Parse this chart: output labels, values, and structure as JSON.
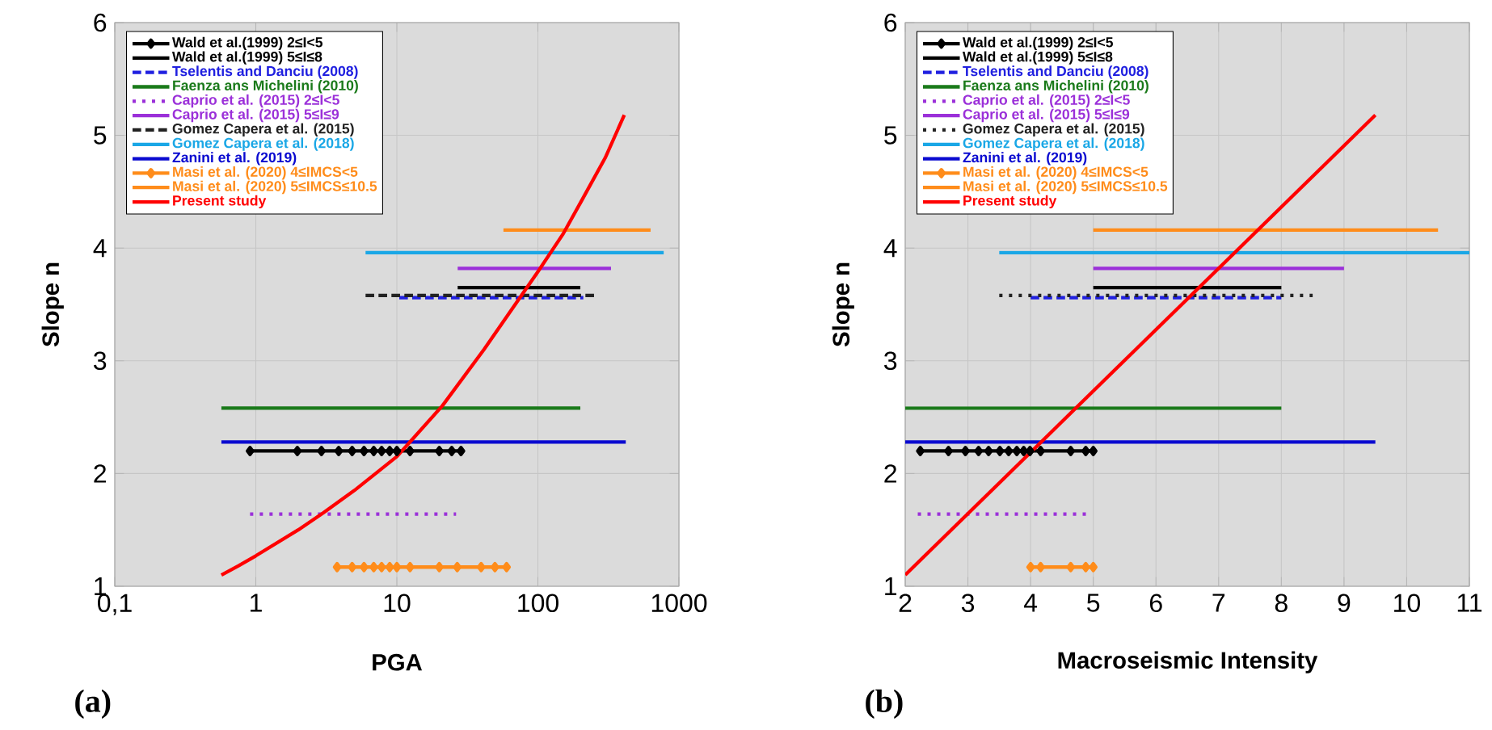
{
  "chart_data": [
    {
      "type": "line",
      "xlabel": "PGA",
      "ylabel": "Slope n",
      "log": "x",
      "grid": true,
      "legend": "top left",
      "xlim": [
        0.1,
        1000
      ],
      "ylim": [
        1,
        6
      ],
      "xticks": [
        {
          "value": 0.1,
          "label": "0,1"
        },
        1,
        10,
        100,
        1000
      ],
      "yticks": [
        1,
        2,
        3,
        4,
        5,
        6
      ],
      "annotations": [
        "(a)"
      ],
      "series": [
        {
          "name": "Wald et al.(1999) 2≤I<5",
          "color": "#000000",
          "line_style": "solid",
          "marker": "diamond",
          "x": [
            0.91,
            1.97,
            2.92,
            3.87,
            4.82,
            5.85,
            6.86,
            7.8,
            8.9,
            10,
            12.4,
            20,
            24.5,
            28.5
          ],
          "values": [
            2.2,
            2.2,
            2.2,
            2.2,
            2.2,
            2.2,
            2.2,
            2.2,
            2.2,
            2.2,
            2.2,
            2.2,
            2.2,
            2.2
          ]
        },
        {
          "name": "Wald et al.(1999) 5≤I≤8",
          "color": "#000000",
          "line_style": "solid",
          "x": [
            27,
            200
          ],
          "values": [
            3.65,
            3.65
          ]
        },
        {
          "name": "Tselentis and Danciu (2008)",
          "color": "#2020e0",
          "line_style": "dashed",
          "x": [
            10.4,
            210
          ],
          "values": [
            3.56,
            3.56
          ]
        },
        {
          "name": "Faenza ans Michelini (2010)",
          "color": "#1a7a1a",
          "line_style": "solid",
          "x": [
            0.57,
            200
          ],
          "values": [
            2.58,
            2.58
          ]
        },
        {
          "name": "Caprio et al. (2015) 2≤I<5",
          "color": "#9b30d9",
          "line_style": "dotted",
          "x": [
            0.91,
            26.3
          ],
          "values": [
            1.64,
            1.64
          ]
        },
        {
          "name": "Caprio et al. (2015) 5≤I≤9",
          "color": "#9b30d9",
          "line_style": "solid",
          "x": [
            27,
            330
          ],
          "values": [
            3.82,
            3.82
          ]
        },
        {
          "name": "Gomez Capera et al. (2015)",
          "color": "#222222",
          "line_style": "dashed",
          "x": [
            6,
            263
          ],
          "values": [
            3.58,
            3.58
          ]
        },
        {
          "name": "Gomez Capera et al. (2018)",
          "color": "#1aa7e6",
          "line_style": "solid",
          "x": [
            6,
            780
          ],
          "values": [
            3.96,
            3.96
          ]
        },
        {
          "name": "Zanini et al. (2019)",
          "color": "#0a0ad0",
          "line_style": "solid",
          "x": [
            0.57,
            420
          ],
          "values": [
            2.28,
            2.28
          ]
        },
        {
          "name": "Masi et al. (2020)   4≤IMCS<5",
          "color": "#ff8c1a",
          "line_style": "solid",
          "marker": "diamond",
          "x": [
            3.77,
            4.82,
            5.85,
            6.86,
            7.8,
            8.9,
            10,
            12.4,
            20,
            26.8,
            39.6,
            49.6,
            60
          ],
          "values": [
            1.17,
            1.17,
            1.17,
            1.17,
            1.17,
            1.17,
            1.17,
            1.17,
            1.17,
            1.17,
            1.17,
            1.17,
            1.17
          ]
        },
        {
          "name": "Masi et al. (2020) 5≤IMCS≤10.5",
          "color": "#ff8c1a",
          "line_style": "solid",
          "x": [
            57,
            630
          ],
          "values": [
            4.16,
            4.16
          ]
        },
        {
          "name": "Present study",
          "color": "#ff0000",
          "line_style": "solid",
          "x": [
            0.57,
            0.75,
            1,
            2,
            3,
            5,
            10,
            21,
            41.5,
            100,
            150,
            200,
            300,
            410
          ],
          "values": [
            1.1,
            1.18,
            1.27,
            1.5,
            1.65,
            1.85,
            2.15,
            2.6,
            3.1,
            3.79,
            4.12,
            4.4,
            4.8,
            5.18
          ]
        }
      ]
    },
    {
      "type": "line",
      "xlabel": "Macroseismic Intensity",
      "ylabel": "Slope n",
      "grid": true,
      "legend": "top left",
      "xlim": [
        2,
        11
      ],
      "ylim": [
        1,
        6
      ],
      "xticks": [
        2,
        3,
        4,
        5,
        6,
        7,
        8,
        9,
        10,
        11
      ],
      "yticks": [
        1,
        2,
        3,
        4,
        5,
        6
      ],
      "annotations": [
        "(b)"
      ],
      "series": [
        {
          "name": "Wald et al.(1999) 2≤I<5",
          "color": "#000000",
          "line_style": "solid",
          "marker": "diamond",
          "x": [
            2.24,
            2.69,
            2.96,
            3.17,
            3.33,
            3.51,
            3.65,
            3.78,
            3.89,
            3.99,
            4.16,
            4.64,
            4.88,
            5.0
          ],
          "values": [
            2.2,
            2.2,
            2.2,
            2.2,
            2.2,
            2.2,
            2.2,
            2.2,
            2.2,
            2.2,
            2.2,
            2.2,
            2.2,
            2.2
          ]
        },
        {
          "name": "Wald et al.(1999) 5≤I≤8",
          "color": "#000000",
          "line_style": "solid",
          "x": [
            5,
            8
          ],
          "values": [
            3.65,
            3.65
          ]
        },
        {
          "name": "Tselentis and Danciu (2008)",
          "color": "#2020e0",
          "line_style": "dashed",
          "x": [
            4,
            8
          ],
          "values": [
            3.56,
            3.56
          ]
        },
        {
          "name": "Faenza ans Michelini (2010)",
          "color": "#1a7a1a",
          "line_style": "solid",
          "x": [
            2,
            8
          ],
          "values": [
            2.58,
            2.58
          ]
        },
        {
          "name": "Caprio et al. (2015) 2≤I<5",
          "color": "#9b30d9",
          "line_style": "dotted",
          "x": [
            2.2,
            4.9
          ],
          "values": [
            1.64,
            1.64
          ]
        },
        {
          "name": "Caprio et al. (2015) 5≤I≤9",
          "color": "#9b30d9",
          "line_style": "solid",
          "x": [
            5,
            9
          ],
          "values": [
            3.82,
            3.82
          ]
        },
        {
          "name": "Gomez Capera et al. (2015)",
          "color": "#222222",
          "line_style": "dotted",
          "x": [
            3.5,
            8.5
          ],
          "values": [
            3.58,
            3.58
          ]
        },
        {
          "name": "Gomez Capera et al. (2018)",
          "color": "#1aa7e6",
          "line_style": "solid",
          "x": [
            3.5,
            11
          ],
          "values": [
            3.96,
            3.96
          ]
        },
        {
          "name": "Zanini et al. (2019)",
          "color": "#0a0ad0",
          "line_style": "solid",
          "x": [
            2,
            9.5
          ],
          "values": [
            2.28,
            2.28
          ]
        },
        {
          "name": "Masi et al. (2020)   4≤IMCS<5",
          "color": "#ff8c1a",
          "line_style": "solid",
          "marker": "diamond",
          "x": [
            4,
            4.16,
            4.64,
            4.88,
            5.0
          ],
          "values": [
            1.17,
            1.17,
            1.17,
            1.17,
            1.17
          ]
        },
        {
          "name": "Masi et al. (2020) 5≤IMCS≤10.5",
          "color": "#ff8c1a",
          "line_style": "solid",
          "x": [
            5,
            10.5
          ],
          "values": [
            4.16,
            4.16
          ]
        },
        {
          "name": "Present study",
          "color": "#ff0000",
          "line_style": "solid",
          "x": [
            2,
            9.5
          ],
          "values": [
            1.1,
            5.18
          ]
        }
      ]
    }
  ]
}
